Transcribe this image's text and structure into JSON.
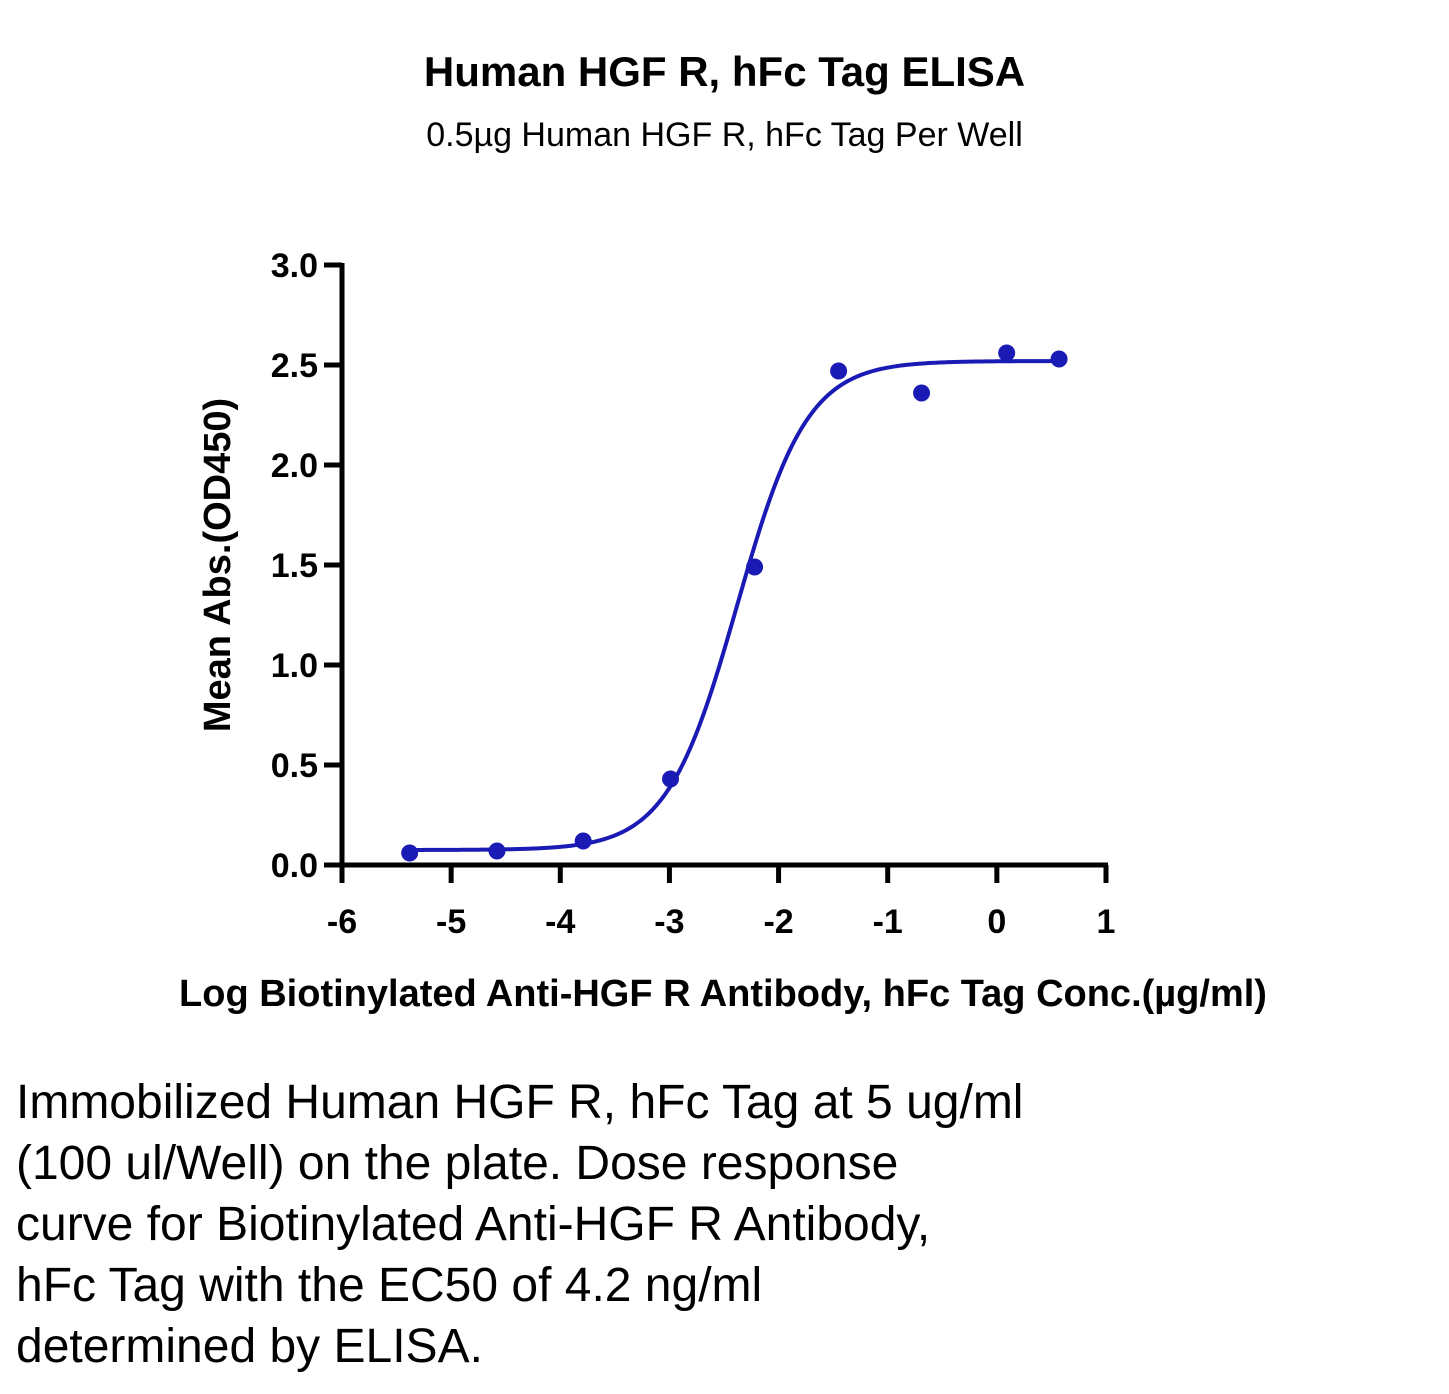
{
  "chart_data": {
    "type": "scatter",
    "title": "Human HGF R, hFc Tag ELISA",
    "subtitle": "0.5µg Human HGF R, hFc Tag Per Well",
    "xlabel": "Log Biotinylated Anti-HGF R Antibody, hFc Tag Conc.(µg/ml)",
    "ylabel": "Mean Abs.(OD450)",
    "xlim": [
      -6,
      1
    ],
    "ylim": [
      0,
      3.0
    ],
    "xticks": [
      "-6",
      "-5",
      "-4",
      "-3",
      "-2",
      "-1",
      "0",
      "1"
    ],
    "yticks": [
      "0.0",
      "0.5",
      "1.0",
      "1.5",
      "2.0",
      "2.5",
      "3.0"
    ],
    "grid": false,
    "color": "#1a1ab4",
    "series": [
      {
        "x": [
          -5.38,
          -4.58,
          -3.79,
          -2.99,
          -2.22,
          -1.45,
          -0.69,
          0.09,
          0.57
        ],
        "y": [
          0.06,
          0.07,
          0.12,
          0.43,
          1.49,
          2.47,
          2.36,
          2.56,
          2.53
        ]
      }
    ],
    "fit_curve": {
      "model": "4PL",
      "bottom": 0.075,
      "top": 2.52,
      "log_ec50": -2.38,
      "hill_slope": 1.35
    }
  },
  "caption_lines": [
    "Immobilized Human HGF R, hFc Tag at 5 ug/ml",
    "(100 ul/Well) on the plate. Dose response",
    "curve for Biotinylated Anti-HGF R Antibody,",
    "hFc Tag with the EC50 of 4.2 ng/ml",
    "determined by ELISA."
  ]
}
